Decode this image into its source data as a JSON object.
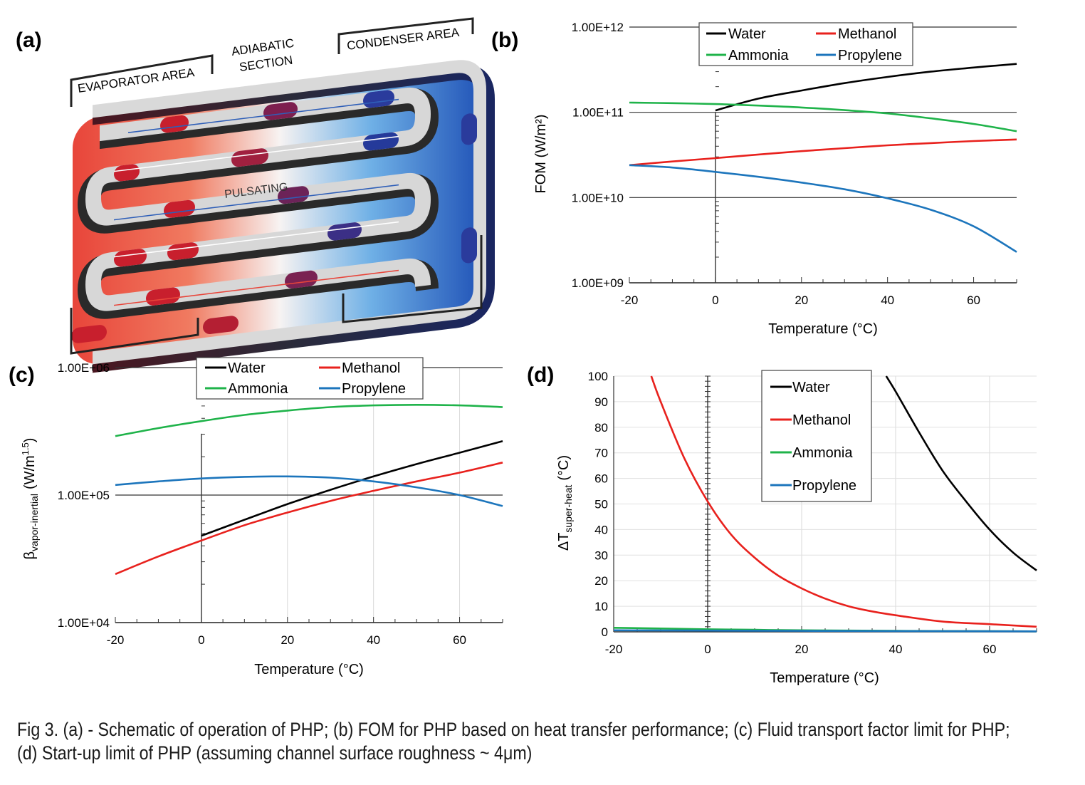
{
  "panels": {
    "a": {
      "label": "(a)",
      "evaporator": "EVAPORATOR AREA",
      "adiabatic_line1": "ADIABATIC",
      "adiabatic_line2": "SECTION",
      "condenser": "CONDENSER AREA",
      "pulsating": "PULSATING"
    },
    "b": {
      "label": "(b)"
    },
    "c": {
      "label": "(c)"
    },
    "d": {
      "label": "(d)"
    }
  },
  "colors": {
    "water": "#000000",
    "methanol": "#e8211d",
    "ammonia": "#1fb34a",
    "propylene": "#1c75bc",
    "evaporator_hot": "#e8453a",
    "condenser_cold": "#1d4fb5",
    "tube": "#d7d7d7"
  },
  "legend": [
    "Water",
    "Methanol",
    "Ammonia",
    "Propylene"
  ],
  "chart_data": [
    {
      "panel": "(b)",
      "type": "line",
      "xlabel": "Temperature (°C)",
      "ylabel": "FOM (W/m²)",
      "y_scale": "log",
      "xlim": [
        -20,
        70
      ],
      "ylim": [
        1000000000.0,
        1000000000000.0
      ],
      "xticks": [
        -20,
        0,
        20,
        40,
        60
      ],
      "yticks": [
        1000000000.0,
        10000000000.0,
        100000000000.0,
        1000000000000.0
      ],
      "ytick_labels": [
        "1.00E+09",
        "1.00E+10",
        "1.00E+11",
        "1.00E+12"
      ],
      "legend_position": "top",
      "series": [
        {
          "name": "Water",
          "x": [
            0,
            10,
            20,
            30,
            40,
            50,
            60,
            70
          ],
          "y": [
            105000000000.0,
            145000000000.0,
            180000000000.0,
            220000000000.0,
            260000000000.0,
            300000000000.0,
            335000000000.0,
            370000000000.0
          ]
        },
        {
          "name": "Methanol",
          "x": [
            -20,
            -10,
            0,
            10,
            20,
            30,
            40,
            50,
            60,
            70
          ],
          "y": [
            24000000000.0,
            26500000000.0,
            29000000000.0,
            32000000000.0,
            35000000000.0,
            38000000000.0,
            41000000000.0,
            43500000000.0,
            46000000000.0,
            48000000000.0
          ]
        },
        {
          "name": "Ammonia",
          "x": [
            -20,
            -10,
            0,
            10,
            20,
            30,
            40,
            50,
            60,
            70
          ],
          "y": [
            130000000000.0,
            128000000000.0,
            125000000000.0,
            120000000000.0,
            114000000000.0,
            106000000000.0,
            97000000000.0,
            85000000000.0,
            73000000000.0,
            60000000000.0
          ]
        },
        {
          "name": "Propylene",
          "x": [
            -20,
            -10,
            0,
            10,
            20,
            30,
            40,
            50,
            60,
            70
          ],
          "y": [
            24000000000.0,
            22500000000.0,
            20000000000.0,
            17500000000.0,
            15000000000.0,
            12500000000.0,
            9800000000.0,
            7200000000.0,
            4600000000.0,
            2300000000.0
          ]
        }
      ]
    },
    {
      "panel": "(c)",
      "type": "line",
      "xlabel": "Temperature (°C)",
      "ylabel_main": "β",
      "ylabel_sub": "vapor-inertial",
      "ylabel_unit": "(W/m",
      "ylabel_sup": "1.5",
      "ylabel_close": ")",
      "y_scale": "log",
      "xlim": [
        -20,
        70
      ],
      "ylim": [
        10000.0,
        1000000.0
      ],
      "xticks": [
        -20,
        0,
        20,
        40,
        60
      ],
      "yticks": [
        10000.0,
        100000.0,
        1000000.0
      ],
      "ytick_labels": [
        "1.00E+04",
        "1.00E+05",
        "1.00E+06"
      ],
      "legend_position": "top",
      "series": [
        {
          "name": "Water",
          "x": [
            0,
            10,
            20,
            30,
            40,
            50,
            60,
            70
          ],
          "y": [
            48000,
            64000,
            85000,
            110000,
            140000,
            175000,
            215000,
            265000
          ]
        },
        {
          "name": "Methanol",
          "x": [
            -20,
            -10,
            0,
            10,
            20,
            30,
            40,
            50,
            60,
            70
          ],
          "y": [
            24000,
            33000,
            44000,
            58000,
            73000,
            90000,
            108000,
            128000,
            150000,
            180000
          ]
        },
        {
          "name": "Ammonia",
          "x": [
            -20,
            -10,
            0,
            10,
            20,
            30,
            40,
            50,
            60,
            70
          ],
          "y": [
            290000,
            335000,
            380000,
            425000,
            460000,
            490000,
            505000,
            510000,
            505000,
            490000
          ]
        },
        {
          "name": "Propylene",
          "x": [
            -20,
            -10,
            0,
            10,
            20,
            30,
            40,
            50,
            60,
            70
          ],
          "y": [
            120000,
            128000,
            135000,
            139000,
            140000,
            137000,
            128000,
            115000,
            100000,
            82000
          ]
        }
      ]
    },
    {
      "panel": "(d)",
      "type": "line",
      "xlabel": "Temperature (°C)",
      "ylabel_main": "ΔT",
      "ylabel_sub": "super-heat",
      "ylabel_unit": "(°C)",
      "y_scale": "linear",
      "xlim": [
        -20,
        70
      ],
      "ylim": [
        0,
        100
      ],
      "xticks": [
        -20,
        0,
        20,
        40,
        60
      ],
      "yticks": [
        0,
        10,
        20,
        30,
        40,
        50,
        60,
        70,
        80,
        90,
        100
      ],
      "legend_position": "top-right",
      "series": [
        {
          "name": "Water",
          "x": [
            38,
            40,
            45,
            50,
            55,
            60,
            65,
            70
          ],
          "y": [
            100,
            94,
            78,
            63,
            51,
            40,
            31,
            24
          ]
        },
        {
          "name": "Methanol",
          "x": [
            -12,
            -10,
            -5,
            0,
            5,
            10,
            15,
            20,
            25,
            30,
            35,
            40,
            50,
            60,
            70
          ],
          "y": [
            100,
            90,
            68,
            51,
            38,
            29,
            22,
            17,
            13,
            10,
            8,
            6.5,
            4,
            3,
            2
          ]
        },
        {
          "name": "Ammonia",
          "x": [
            -20,
            -10,
            0,
            10,
            20,
            40,
            70
          ],
          "y": [
            1.6,
            1.3,
            1.0,
            0.8,
            0.6,
            0.4,
            0.2
          ]
        },
        {
          "name": "Propylene",
          "x": [
            -20,
            0,
            20,
            40,
            70
          ],
          "y": [
            0.6,
            0.5,
            0.4,
            0.3,
            0.2
          ]
        }
      ]
    }
  ],
  "caption": {
    "line1": "Fig 3. (a) - Schematic of operation of PHP; (b) FOM for PHP based on heat transfer performance; (c) Fluid transport factor limit for PHP;",
    "line2": "(d) Start-up limit of PHP (assuming channel surface roughness ~ 4μm)"
  }
}
